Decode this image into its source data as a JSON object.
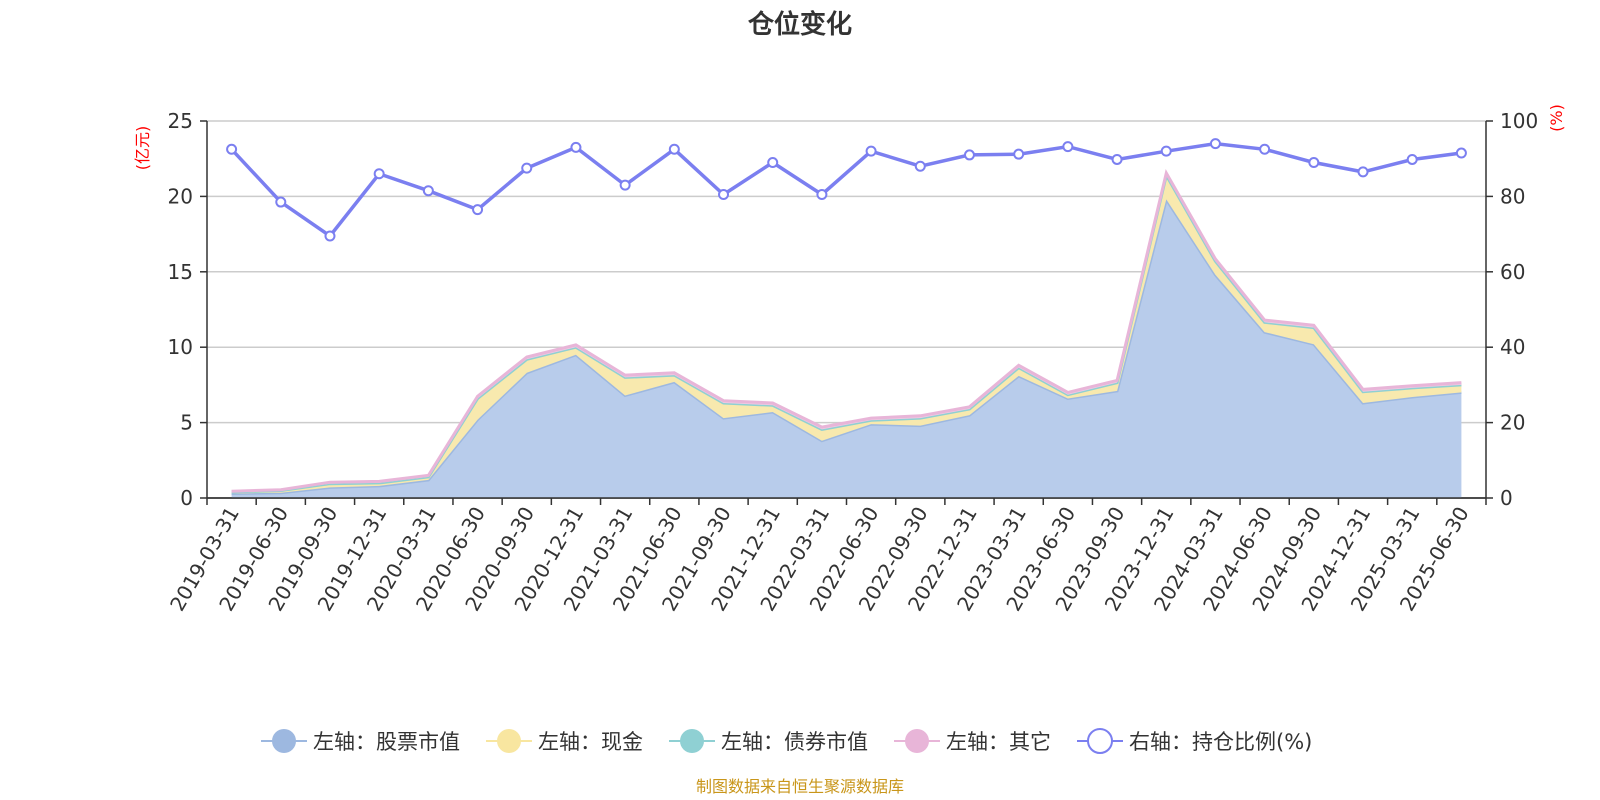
{
  "chart_data": {
    "type": "area",
    "title": "仓位变化",
    "source_note": "制图数据来自恒生聚源数据库",
    "left_axis": {
      "unit_label": "(亿元)",
      "ylim": [
        0,
        25
      ],
      "ticks": [
        "0",
        "5",
        "10",
        "15",
        "20",
        "25"
      ]
    },
    "right_axis": {
      "unit_label": "(%)",
      "ylim": [
        0,
        100
      ],
      "ticks": [
        "0",
        "20",
        "40",
        "60",
        "80",
        "100"
      ]
    },
    "grid": true,
    "legend_position": "bottom",
    "categories": [
      "2019-03-31",
      "2019-06-30",
      "2019-09-30",
      "2019-12-31",
      "2020-03-31",
      "2020-06-30",
      "2020-09-30",
      "2020-12-31",
      "2021-03-31",
      "2021-06-30",
      "2021-09-30",
      "2021-12-31",
      "2022-03-31",
      "2022-06-30",
      "2022-09-30",
      "2022-12-31",
      "2023-03-31",
      "2023-06-30",
      "2023-09-30",
      "2023-12-31",
      "2024-03-31",
      "2024-06-30",
      "2024-09-30",
      "2024-12-31",
      "2025-03-31",
      "2025-06-30"
    ],
    "series": [
      {
        "name": "左轴：股票市值",
        "axis": "left",
        "color": "#9db8e0",
        "fill": "#b8cceb",
        "values": [
          0.3,
          0.35,
          0.7,
          0.8,
          1.2,
          5.2,
          8.3,
          9.5,
          6.8,
          7.7,
          5.3,
          5.7,
          3.8,
          4.9,
          4.8,
          5.5,
          8.1,
          6.6,
          7.1,
          19.8,
          14.8,
          11.0,
          10.2,
          6.3,
          6.7,
          7.0
        ]
      },
      {
        "name": "左轴：现金",
        "axis": "left",
        "color": "#f8e6a0",
        "fill": "#f8e9ae",
        "values": [
          0.1,
          0.15,
          0.25,
          0.2,
          0.2,
          1.4,
          0.9,
          0.5,
          1.2,
          0.45,
          1.0,
          0.45,
          0.75,
          0.25,
          0.5,
          0.4,
          0.55,
          0.25,
          0.55,
          1.6,
          0.9,
          0.65,
          1.1,
          0.75,
          0.6,
          0.5
        ]
      },
      {
        "name": "左轴：债券市值",
        "axis": "left",
        "color": "#8fd0d3",
        "fill": "#a6dadc",
        "values": [
          0,
          0,
          0,
          0,
          0,
          0,
          0,
          0,
          0,
          0,
          0,
          0,
          0,
          0,
          0,
          0,
          0,
          0,
          0,
          0,
          0,
          0,
          0,
          0,
          0,
          0
        ]
      },
      {
        "name": "左轴：其它",
        "axis": "left",
        "color": "#e8b5d8",
        "fill": "#f0cae3",
        "values": [
          0.05,
          0.05,
          0.1,
          0.1,
          0.1,
          0.15,
          0.15,
          0.15,
          0.15,
          0.15,
          0.15,
          0.15,
          0.15,
          0.15,
          0.15,
          0.15,
          0.15,
          0.15,
          0.15,
          0.15,
          0.15,
          0.15,
          0.15,
          0.15,
          0.15,
          0.15
        ]
      },
      {
        "name": "右轴：持仓比例(%)",
        "axis": "right",
        "type": "line",
        "color": "#7b7ff0",
        "values": [
          92.5,
          78.5,
          69.5,
          86,
          81.5,
          76.5,
          87.5,
          93,
          83,
          92.5,
          80.5,
          89,
          80.5,
          92,
          88,
          91,
          91.2,
          93.2,
          89.8,
          92,
          94,
          92.5,
          89,
          86.5,
          89.8,
          91.5
        ]
      }
    ]
  }
}
